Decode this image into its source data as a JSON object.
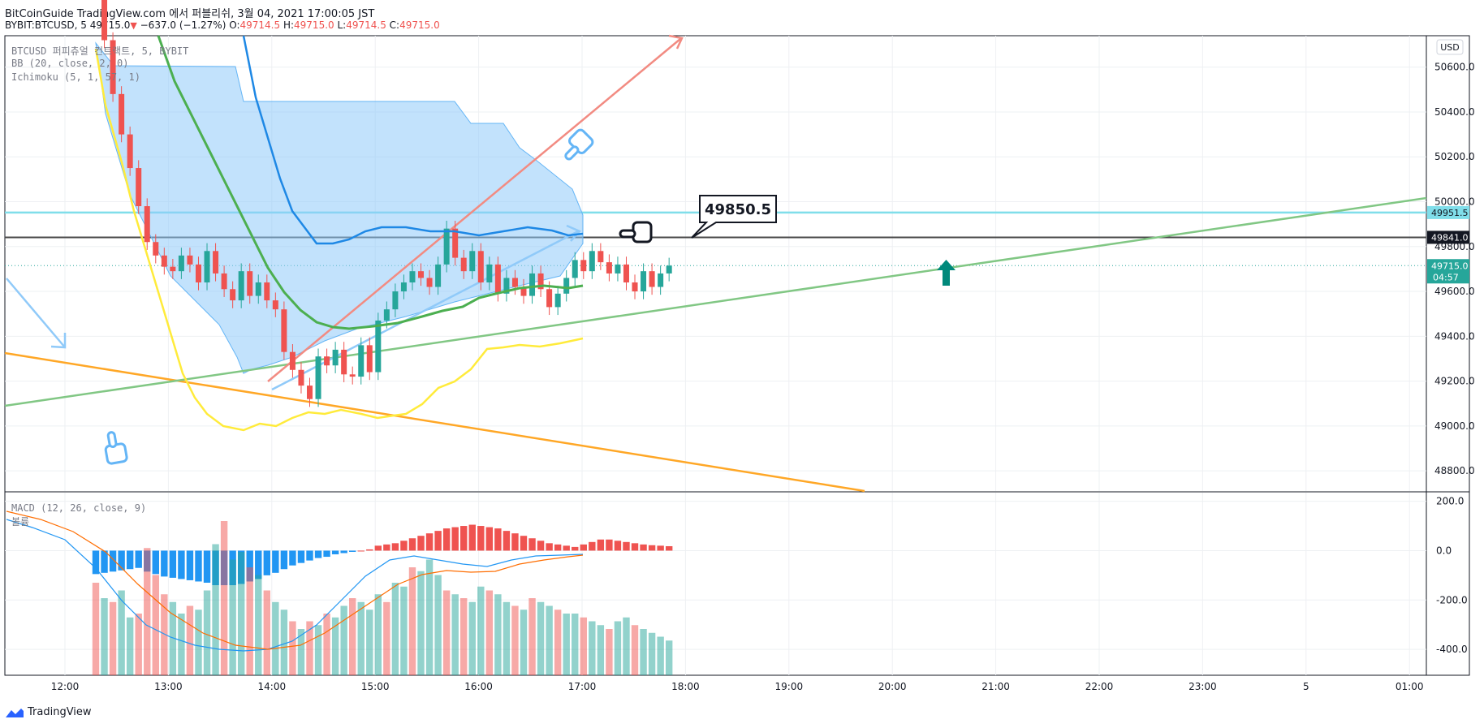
{
  "header": {
    "line1": "BitCoinGuide TradingView.com 에서 퍼블리쉬, 3월 04, 2021 17:00:05 JST",
    "symbol": "BYBIT:BTCUSD, 5",
    "last": "49715.0",
    "change": "−637.0 (−1.27%)",
    "o_label": "O:",
    "o": "49714.5",
    "h_label": "H:",
    "h": "49715.0",
    "l_label": "L:",
    "l": "49714.5",
    "c_label": "C:",
    "c": "49715.0"
  },
  "legend": {
    "main": "BTCUSD 퍼피츄얼 컨트랙트, 5, BYBIT",
    "bb": "BB (20, close, 2, 0)",
    "ichimoku": "Ichimoku (5, 1, 57, 1)",
    "macd": "MACD (12, 26, close, 9)",
    "macd_sub": "볼륨"
  },
  "brand": "TradingView",
  "colors": {
    "up": "#26a69a",
    "down": "#ef5350",
    "bb_basis": "#2196f3",
    "ichimoku_fast": "#4caf50",
    "ichimoku_slow": "#ffeb3b",
    "cloud": "#90caf9",
    "orange": "#ff9800",
    "salmon": "#f28b82",
    "cyan": "#80deea",
    "black": "#131722"
  },
  "chart_data": [
    {
      "type": "candlestick",
      "currency": "USD",
      "y_ticks": [
        "50600.0",
        "50400.0",
        "50200.0",
        "50000.0",
        "49800.0",
        "49600.0",
        "49400.0",
        "49200.0",
        "49000.0",
        "48800.0"
      ],
      "ylim": [
        48710,
        50740
      ],
      "x_ticks": [
        "12:00",
        "13:00",
        "14:00",
        "15:00",
        "16:00",
        "17:00",
        "18:00",
        "19:00",
        "20:00",
        "21:00",
        "22:00",
        "23:00",
        "5",
        "01:00"
      ],
      "price_labels": [
        {
          "value": 49951.5,
          "text": "49951.5",
          "color": "#80deea"
        },
        {
          "value": 49841.0,
          "text": "49841.0",
          "color": "#131722"
        },
        {
          "value": 49715.0,
          "text": "49715.0",
          "sub": "04:57",
          "color": "#26a69a"
        }
      ],
      "annotation": {
        "text": "49850.5",
        "value": 49850.5
      },
      "candles_sample_note": "",
      "start_price": 50950,
      "candle_closes": [
        50950,
        50720,
        50480,
        50300,
        50150,
        49980,
        49820,
        49760,
        49710,
        49690,
        49760,
        49720,
        49640,
        49780,
        49680,
        49610,
        49560,
        49690,
        49580,
        49640,
        49560,
        49520,
        49330,
        49250,
        49180,
        49120,
        49310,
        49270,
        49340,
        49230,
        49220,
        49360,
        49240,
        49470,
        49520,
        49600,
        49640,
        49690,
        49660,
        49620,
        49720,
        49880,
        49750,
        49690,
        49780,
        49640,
        49720,
        49590,
        49660,
        49620,
        49580,
        49680,
        49610,
        49530,
        49590,
        49660,
        49740,
        49690,
        49780,
        49730,
        49680,
        49720,
        49640,
        49600,
        49690,
        49620,
        49680,
        49715
      ]
    },
    {
      "type": "bar",
      "name": "MACD",
      "y_ticks": [
        "200.0",
        "0.0",
        "-200.0",
        "-400.0"
      ],
      "ylim": [
        -505,
        235
      ]
    }
  ]
}
